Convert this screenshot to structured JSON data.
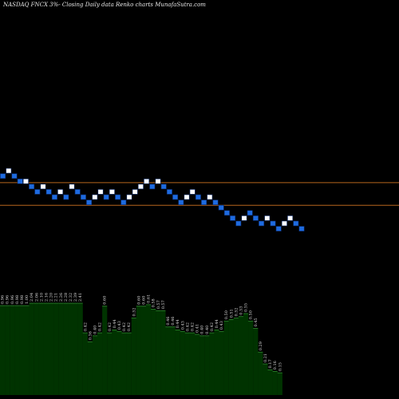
{
  "header": {
    "title": "NASDAQ FNCX  3%-  Closing Daily data  Renko  charts MunafaSutra.com"
  },
  "colors": {
    "background": "#000000",
    "up_brick": "#ffffff",
    "down_brick": "#1e6be0",
    "brick_border": "#0a2a6a",
    "reference_line": "#b5651d",
    "volume_fill": "#003300",
    "volume_edge": "#2e8b2e",
    "label_text": "#dcdcdc"
  },
  "chart_data": [
    {
      "type": "renko",
      "title": "NASDAQ FNCX  3%-  Closing Daily data  Renko  charts MunafaSutra.com",
      "xlabel": "",
      "ylabel": "",
      "brick_size_percent": 3,
      "bricks": [
        {
          "level": 18,
          "dir": "down"
        },
        {
          "level": 19,
          "dir": "up"
        },
        {
          "level": 18,
          "dir": "down"
        },
        {
          "level": 17,
          "dir": "down"
        },
        {
          "level": 17,
          "dir": "up"
        },
        {
          "level": 16,
          "dir": "down"
        },
        {
          "level": 15,
          "dir": "down"
        },
        {
          "level": 16,
          "dir": "up"
        },
        {
          "level": 15,
          "dir": "down"
        },
        {
          "level": 14,
          "dir": "down"
        },
        {
          "level": 15,
          "dir": "up"
        },
        {
          "level": 14,
          "dir": "down"
        },
        {
          "level": 16,
          "dir": "up"
        },
        {
          "level": 15,
          "dir": "down"
        },
        {
          "level": 14,
          "dir": "down"
        },
        {
          "level": 13,
          "dir": "down"
        },
        {
          "level": 14,
          "dir": "up"
        },
        {
          "level": 15,
          "dir": "up"
        },
        {
          "level": 14,
          "dir": "down"
        },
        {
          "level": 15,
          "dir": "up"
        },
        {
          "level": 14,
          "dir": "down"
        },
        {
          "level": 13,
          "dir": "down"
        },
        {
          "level": 14,
          "dir": "up"
        },
        {
          "level": 15,
          "dir": "up"
        },
        {
          "level": 16,
          "dir": "up"
        },
        {
          "level": 17,
          "dir": "up"
        },
        {
          "level": 16,
          "dir": "down"
        },
        {
          "level": 17,
          "dir": "up"
        },
        {
          "level": 16,
          "dir": "down"
        },
        {
          "level": 15,
          "dir": "down"
        },
        {
          "level": 14,
          "dir": "down"
        },
        {
          "level": 13,
          "dir": "down"
        },
        {
          "level": 14,
          "dir": "up"
        },
        {
          "level": 15,
          "dir": "up"
        },
        {
          "level": 14,
          "dir": "down"
        },
        {
          "level": 13,
          "dir": "down"
        },
        {
          "level": 14,
          "dir": "up"
        },
        {
          "level": 13,
          "dir": "down"
        },
        {
          "level": 12,
          "dir": "down"
        },
        {
          "level": 11,
          "dir": "down"
        },
        {
          "level": 10,
          "dir": "down"
        },
        {
          "level": 9,
          "dir": "down"
        },
        {
          "level": 10,
          "dir": "up"
        },
        {
          "level": 11,
          "dir": "down"
        },
        {
          "level": 10,
          "dir": "down"
        },
        {
          "level": 9,
          "dir": "down"
        },
        {
          "level": 10,
          "dir": "up"
        },
        {
          "level": 9,
          "dir": "down"
        },
        {
          "level": 8,
          "dir": "down"
        },
        {
          "level": 9,
          "dir": "up"
        },
        {
          "level": 10,
          "dir": "up"
        },
        {
          "level": 9,
          "dir": "down"
        },
        {
          "level": 8,
          "dir": "down"
        }
      ],
      "reference_levels": [
        16.8,
        12.5
      ],
      "volume": {
        "labels": [
          "0.96",
          "0.96",
          "0.96",
          "0.98",
          "0.98",
          "1.00",
          "2.04",
          "2.06",
          "2.10",
          "2.16",
          "2.20",
          "2.21",
          "2.26",
          "2.28",
          "2.32",
          "2.39",
          "2.41",
          "0.42",
          "0.36",
          "0.40",
          "0.42",
          "0.60",
          "0.42",
          "0.44",
          "0.43",
          "0.42",
          "0.42",
          "0.52",
          "0.60",
          "0.60",
          "0.61",
          "0.58",
          "0.57",
          "0.57",
          "0.46",
          "0.46",
          "0.44",
          "0.43",
          "0.42",
          "0.42",
          "0.41",
          "0.40",
          "0.40",
          "0.42",
          "0.44",
          "0.43",
          "0.50",
          "0.51",
          "0.52",
          "0.53",
          "0.55",
          "0.50",
          "0.45",
          "0.29",
          "0.21",
          "0.17",
          "0.16",
          "0.15"
        ],
        "values": [
          0.96,
          0.96,
          0.96,
          0.98,
          0.98,
          1.0,
          2.04,
          2.06,
          2.1,
          2.16,
          2.2,
          2.21,
          2.26,
          2.28,
          2.32,
          2.39,
          2.41,
          0.42,
          0.36,
          0.4,
          0.42,
          0.6,
          0.42,
          0.44,
          0.43,
          0.42,
          0.42,
          0.52,
          0.6,
          0.6,
          0.61,
          0.58,
          0.57,
          0.57,
          0.46,
          0.46,
          0.44,
          0.43,
          0.42,
          0.42,
          0.41,
          0.4,
          0.4,
          0.42,
          0.44,
          0.43,
          0.5,
          0.51,
          0.52,
          0.53,
          0.55,
          0.5,
          0.45,
          0.29,
          0.21,
          0.17,
          0.16,
          0.15
        ]
      }
    }
  ]
}
